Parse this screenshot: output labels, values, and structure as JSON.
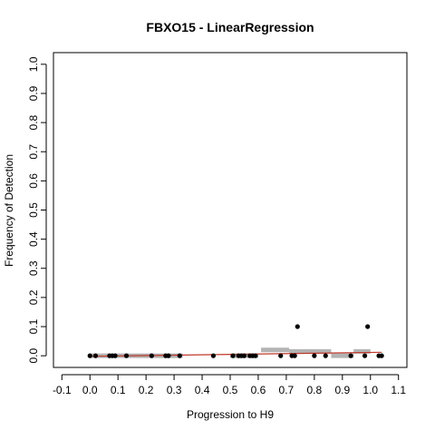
{
  "chart_data": {
    "type": "scatter",
    "title": "FBXO15 - LinearRegression",
    "xlabel": "Progression to H9",
    "ylabel": "Frequency of Detection",
    "xlim": [
      -0.13,
      1.13
    ],
    "ylim": [
      -0.04,
      1.04
    ],
    "x_ticks": [
      "-0.1",
      "0.0",
      "0.1",
      "0.2",
      "0.3",
      "0.4",
      "0.5",
      "0.6",
      "0.7",
      "0.8",
      "0.9",
      "1.0",
      "1.1"
    ],
    "y_ticks": [
      "0.0",
      "0.1",
      "0.2",
      "0.3",
      "0.4",
      "0.5",
      "0.6",
      "0.7",
      "0.8",
      "0.9",
      "1.0"
    ],
    "grid": false,
    "legend": "none",
    "points": {
      "x": [
        0.0,
        0.02,
        0.07,
        0.08,
        0.09,
        0.13,
        0.22,
        0.27,
        0.28,
        0.32,
        0.44,
        0.51,
        0.53,
        0.54,
        0.55,
        0.57,
        0.58,
        0.59,
        0.68,
        0.72,
        0.73,
        0.74,
        0.8,
        0.84,
        0.93,
        0.98,
        0.99,
        1.03,
        1.04
      ],
      "y": [
        0.0,
        0.0,
        0.0,
        0.0,
        0.0,
        0.0,
        0.0,
        0.0,
        0.0,
        0.0,
        0.0,
        0.0,
        0.0,
        0.0,
        0.0,
        0.0,
        0.0,
        0.0,
        0.0,
        0.0,
        0.0,
        0.1,
        0.0,
        0.0,
        0.0,
        0.0,
        0.1,
        0.0,
        0.0
      ]
    },
    "regression_line": {
      "x": [
        0.0,
        1.04
      ],
      "y": [
        -0.002,
        0.012
      ]
    },
    "smoothed_bands": [
      {
        "x0": 0.0,
        "x1": 0.33,
        "y": 0.0
      },
      {
        "x0": 0.5,
        "x1": 0.6,
        "y": 0.0
      },
      {
        "x0": 0.61,
        "x1": 0.71,
        "y": 0.02
      },
      {
        "x0": 0.71,
        "x1": 0.86,
        "y": 0.015
      },
      {
        "x0": 0.86,
        "x1": 0.94,
        "y": 0.0
      },
      {
        "x0": 0.94,
        "x1": 1.0,
        "y": 0.015
      }
    ],
    "colors": {
      "points": "#000000",
      "regression_line": "#c0392b",
      "smoothed_bands": "#b3b3b3"
    }
  }
}
